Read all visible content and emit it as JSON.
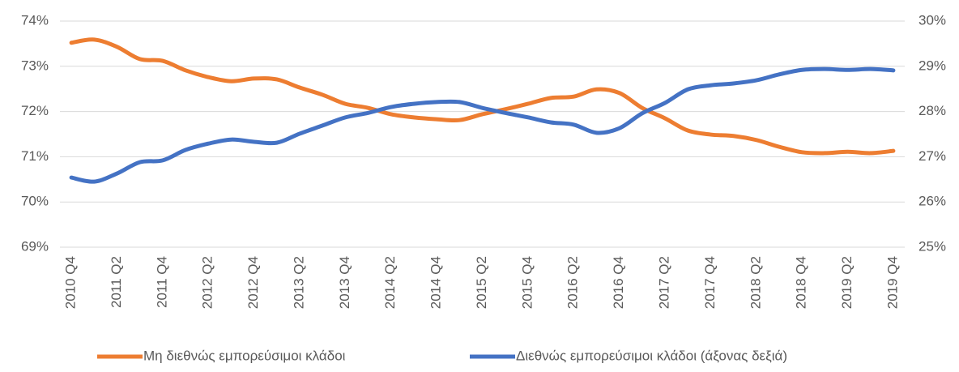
{
  "chart_data": {
    "type": "line",
    "categories": [
      "2010 Q4",
      null,
      "2011 Q2",
      null,
      "2011 Q4",
      null,
      "2012 Q2",
      null,
      "2012 Q4",
      null,
      "2013 Q2",
      null,
      "2013 Q4",
      null,
      "2014 Q2",
      null,
      "2014 Q4",
      null,
      "2015 Q2",
      null,
      "2015 Q4",
      null,
      "2016 Q2",
      null,
      "2016 Q4",
      null,
      "2017 Q2",
      null,
      "2017 Q4",
      null,
      "2018 Q2",
      null,
      "2018 Q4",
      null,
      "2019 Q2",
      null,
      "2019 Q4"
    ],
    "series": [
      {
        "name": "Μη διεθνώς εμπορεύσιμοι κλάδοι",
        "color": "#ed7d31",
        "axis": "y",
        "values": [
          73.52,
          73.59,
          73.43,
          73.16,
          73.12,
          72.91,
          72.76,
          72.67,
          72.73,
          72.71,
          72.53,
          72.37,
          72.17,
          72.08,
          71.94,
          71.87,
          71.83,
          71.81,
          71.94,
          72.05,
          72.17,
          72.3,
          72.33,
          72.49,
          72.41,
          72.08,
          71.85,
          71.58,
          71.49,
          71.46,
          71.37,
          71.22,
          71.1,
          71.08,
          71.11,
          71.08,
          71.13
        ]
      },
      {
        "name": "Διεθνώς εμπορεύσιμοι κλάδοι (άξονας δεξιά)",
        "color": "#4472c4",
        "axis": "y2",
        "values": [
          26.54,
          26.45,
          26.63,
          26.88,
          26.92,
          27.15,
          27.29,
          27.38,
          27.33,
          27.31,
          27.51,
          27.69,
          27.87,
          27.97,
          28.1,
          28.17,
          28.21,
          28.21,
          28.08,
          27.97,
          27.87,
          27.76,
          27.71,
          27.53,
          27.63,
          27.96,
          28.19,
          28.49,
          28.58,
          28.62,
          28.69,
          28.82,
          28.92,
          28.94,
          28.92,
          28.94,
          28.91
        ]
      }
    ],
    "ylim": [
      69,
      74
    ],
    "yticks": [
      {
        "value": 69,
        "label": "69%"
      },
      {
        "value": 70,
        "label": "70%"
      },
      {
        "value": 71,
        "label": "71%"
      },
      {
        "value": 72,
        "label": "72%"
      },
      {
        "value": 73,
        "label": "73%"
      },
      {
        "value": 74,
        "label": "74%"
      }
    ],
    "y2lim": [
      25,
      30
    ],
    "y2ticks": [
      {
        "value": 25,
        "label": "25%"
      },
      {
        "value": 26,
        "label": "26%"
      },
      {
        "value": 27,
        "label": "27%"
      },
      {
        "value": 28,
        "label": "28%"
      },
      {
        "value": 29,
        "label": "29%"
      },
      {
        "value": 30,
        "label": "30%"
      }
    ],
    "grid": true,
    "legend": "bottom"
  }
}
